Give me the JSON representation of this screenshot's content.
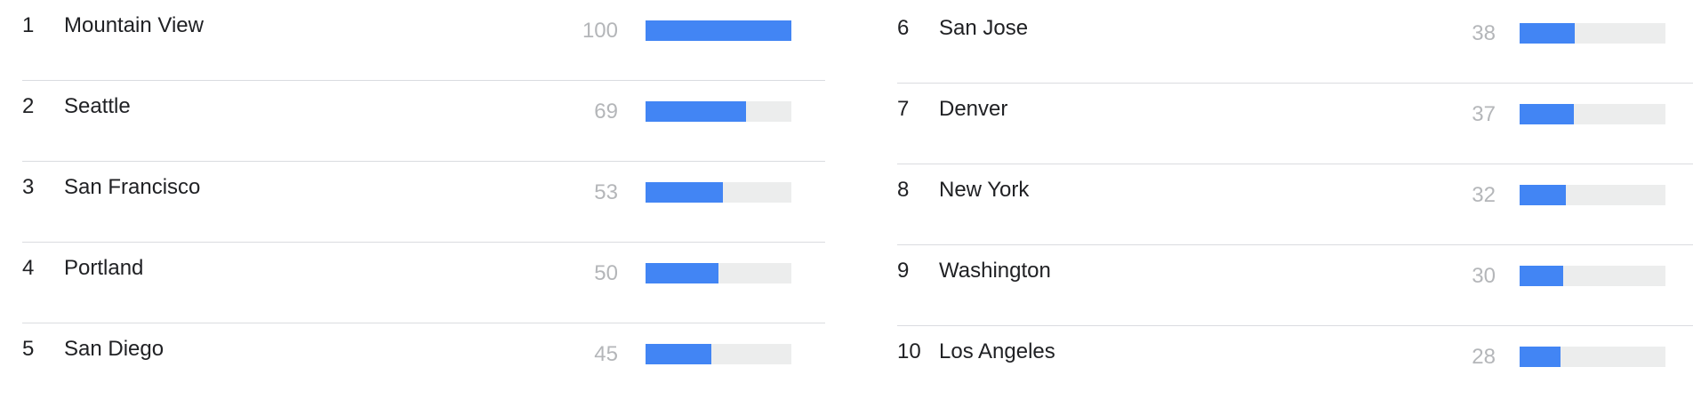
{
  "colors": {
    "bar_fill": "#4285f4",
    "bar_track": "#eceded",
    "value_text": "#b4b6b9",
    "divider": "#dadce0"
  },
  "rankings": {
    "left": [
      {
        "rank": "1",
        "name": "Mountain View",
        "value": "100",
        "fraction": 1.0
      },
      {
        "rank": "2",
        "name": "Seattle",
        "value": "69",
        "fraction": 0.69
      },
      {
        "rank": "3",
        "name": "San Francisco",
        "value": "53",
        "fraction": 0.53
      },
      {
        "rank": "4",
        "name": "Portland",
        "value": "50",
        "fraction": 0.5
      },
      {
        "rank": "5",
        "name": "San Diego",
        "value": "45",
        "fraction": 0.45
      }
    ],
    "right": [
      {
        "rank": "6",
        "name": "San Jose",
        "value": "38",
        "fraction": 0.38
      },
      {
        "rank": "7",
        "name": "Denver",
        "value": "37",
        "fraction": 0.37
      },
      {
        "rank": "8",
        "name": "New York",
        "value": "32",
        "fraction": 0.32
      },
      {
        "rank": "9",
        "name": "Washington",
        "value": "30",
        "fraction": 0.3
      },
      {
        "rank": "10",
        "name": "Los Angeles",
        "value": "28",
        "fraction": 0.28
      }
    ]
  }
}
